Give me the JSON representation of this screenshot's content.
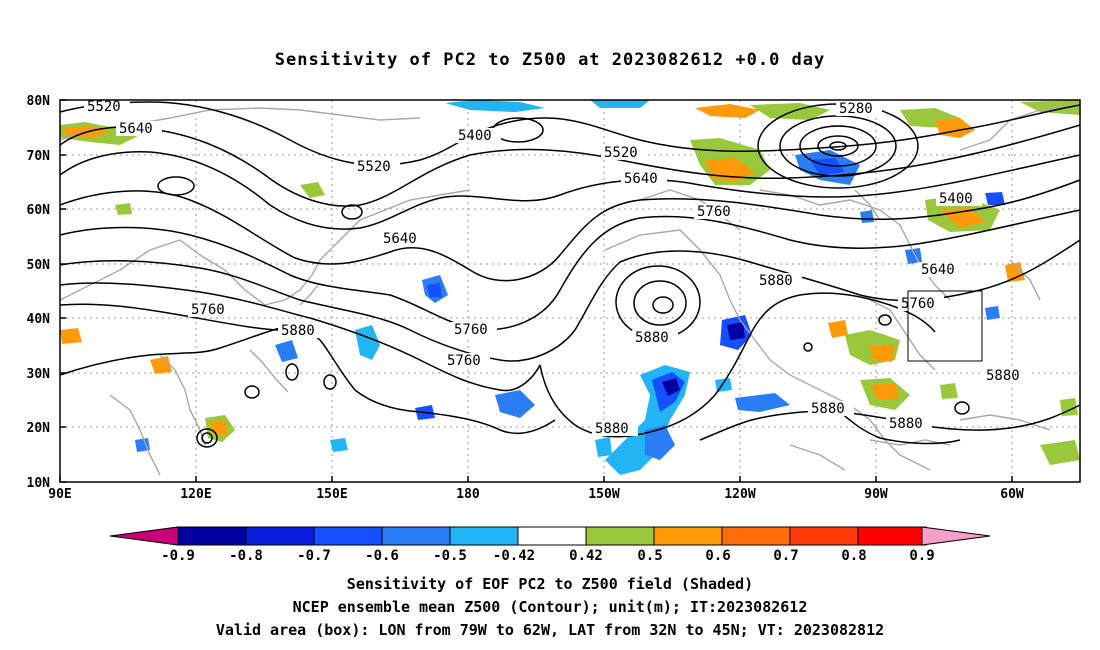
{
  "title": "Sensitivity of PC2 to Z500 at 2023082612 +0.0 day",
  "map": {
    "lat_labels": [
      "80N",
      "70N",
      "60N",
      "50N",
      "40N",
      "30N",
      "20N",
      "10N"
    ],
    "lon_labels": [
      "90E",
      "120E",
      "150E",
      "180",
      "150W",
      "120W",
      "90W",
      "60W"
    ],
    "contour_labels": [
      {
        "text": "5520"
      },
      {
        "text": "5640"
      },
      {
        "text": "5400"
      },
      {
        "text": "5520"
      },
      {
        "text": "5280"
      },
      {
        "text": "5520"
      },
      {
        "text": "5640"
      },
      {
        "text": "5760"
      },
      {
        "text": "5400"
      },
      {
        "text": "5640"
      },
      {
        "text": "5640"
      },
      {
        "text": "5880"
      },
      {
        "text": "5760"
      },
      {
        "text": "5760"
      },
      {
        "text": "5760"
      },
      {
        "text": "5880"
      },
      {
        "text": "5880"
      },
      {
        "text": "5760"
      },
      {
        "text": "5880"
      },
      {
        "text": "5880"
      },
      {
        "text": "5880"
      },
      {
        "text": "5880"
      }
    ],
    "valid_box": {
      "lon_from": "79W",
      "lon_to": "62W",
      "lat_from": "32N",
      "lat_to": "45N"
    }
  },
  "colorbar": {
    "labels": [
      "-0.9",
      "-0.8",
      "-0.7",
      "-0.6",
      "-0.5",
      "-0.42",
      "0.42",
      "0.5",
      "0.6",
      "0.7",
      "0.8",
      "0.9"
    ],
    "colors": [
      "#0000a0",
      "#0a1ee0",
      "#1450ff",
      "#2a7df5",
      "#23b4f5",
      "#ffffff",
      "#9ac83c",
      "#ff9a0a",
      "#ff6e0a",
      "#ff3c0a",
      "#ff0000"
    ],
    "under_color": "#c8007a",
    "over_color": "#f5a0c8"
  },
  "captions": {
    "line1": "Sensitivity of EOF PC2 to Z500 field (Shaded)",
    "line2": "NCEP ensemble mean Z500 (Contour); unit(m); IT:2023082612",
    "line3": "Valid area (box): LON from 79W to 62W, LAT from 32N to 45N; VT: 2023082812"
  }
}
